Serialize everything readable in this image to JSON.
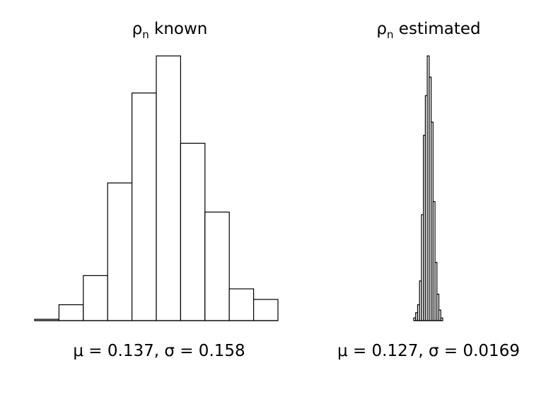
{
  "chart_data": [
    {
      "type": "bar",
      "title_symbol": "ρ",
      "title_subscript": "n",
      "title_rest": " known",
      "stat_text": "μ = 0.137, σ = 0.158",
      "values": [
        0.5,
        6,
        17,
        52,
        86,
        100,
        67,
        41,
        12,
        8
      ],
      "bin_edges": [
        -0.3,
        -0.2,
        -0.1,
        0.0,
        0.1,
        0.2,
        0.3,
        0.4,
        0.5,
        0.6,
        0.7
      ],
      "axes": "none"
    },
    {
      "type": "bar",
      "title_symbol": "ρ",
      "title_subscript": "n",
      "title_rest": " estimated",
      "stat_text": "μ = 0.127, σ = 0.0169",
      "values": [
        1,
        3,
        6,
        15,
        40,
        70,
        85,
        100,
        92,
        75,
        45,
        22,
        10,
        4,
        1
      ],
      "bin_edges": [
        0.08,
        0.086,
        0.092,
        0.098,
        0.104,
        0.11,
        0.116,
        0.122,
        0.128,
        0.134,
        0.14,
        0.146,
        0.152,
        0.158,
        0.164,
        0.17
      ],
      "axes": "none"
    }
  ]
}
